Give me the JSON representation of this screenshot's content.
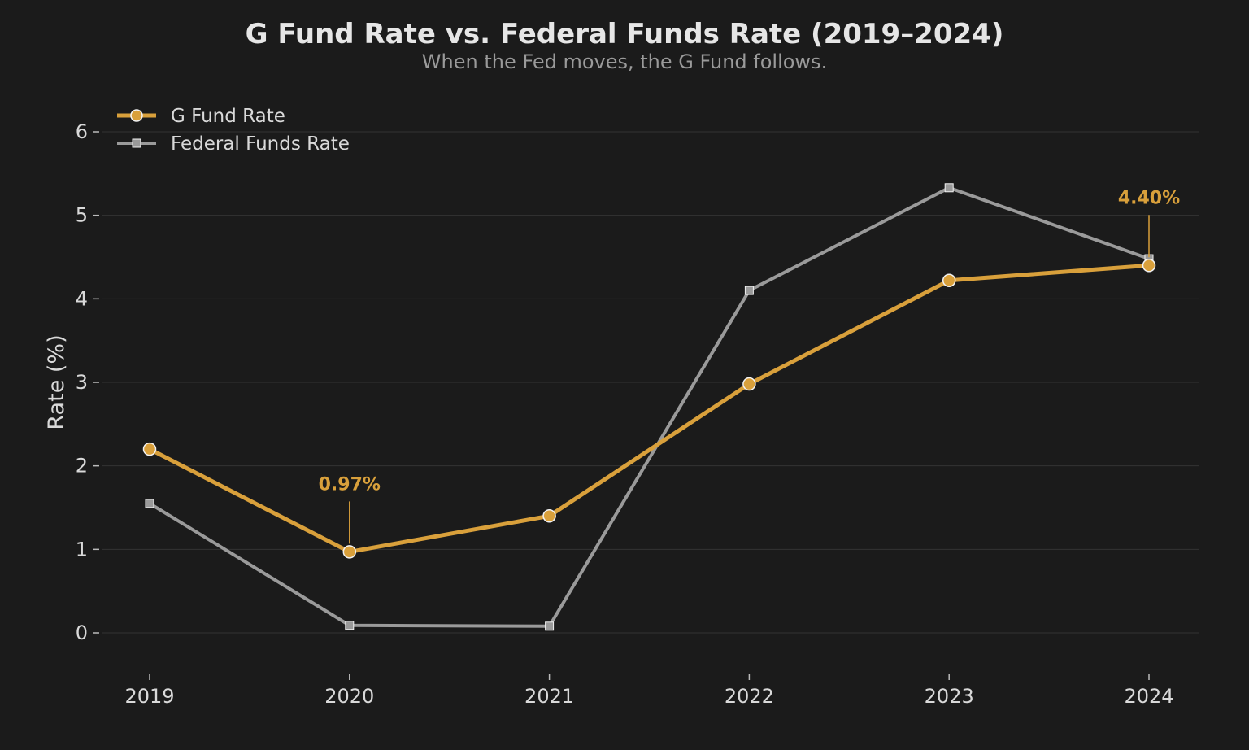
{
  "colors": {
    "background": "#1b1b1b",
    "g_fund": "#d9a03b",
    "federal_funds": "#9a9a9a",
    "grid": "#333333",
    "text": "#d9d9d9"
  },
  "chart_data": {
    "type": "line",
    "title": "G Fund Rate vs. Federal Funds Rate (2019–2024)",
    "subtitle": "When the Fed moves, the G Fund follows.",
    "xlabel": "",
    "ylabel": "Rate (%)",
    "x": [
      "2019",
      "2020",
      "2021",
      "2022",
      "2023",
      "2024"
    ],
    "ylim": [
      -0.5,
      6.3
    ],
    "yticks": [
      0,
      1,
      2,
      3,
      4,
      5,
      6
    ],
    "grid": true,
    "legend_position": "top-left",
    "series": [
      {
        "name": "G Fund Rate",
        "values": [
          2.2,
          0.97,
          1.4,
          2.98,
          4.22,
          4.4
        ],
        "marker": "circle",
        "color": "#d9a03b"
      },
      {
        "name": "Federal Funds Rate",
        "values": [
          1.55,
          0.09,
          0.08,
          4.1,
          5.33,
          4.48
        ],
        "marker": "square",
        "color": "#9a9a9a"
      }
    ],
    "annotations": [
      {
        "series": 0,
        "index": 1,
        "text": "0.97%"
      },
      {
        "series": 0,
        "index": 5,
        "text": "4.40%"
      }
    ]
  }
}
